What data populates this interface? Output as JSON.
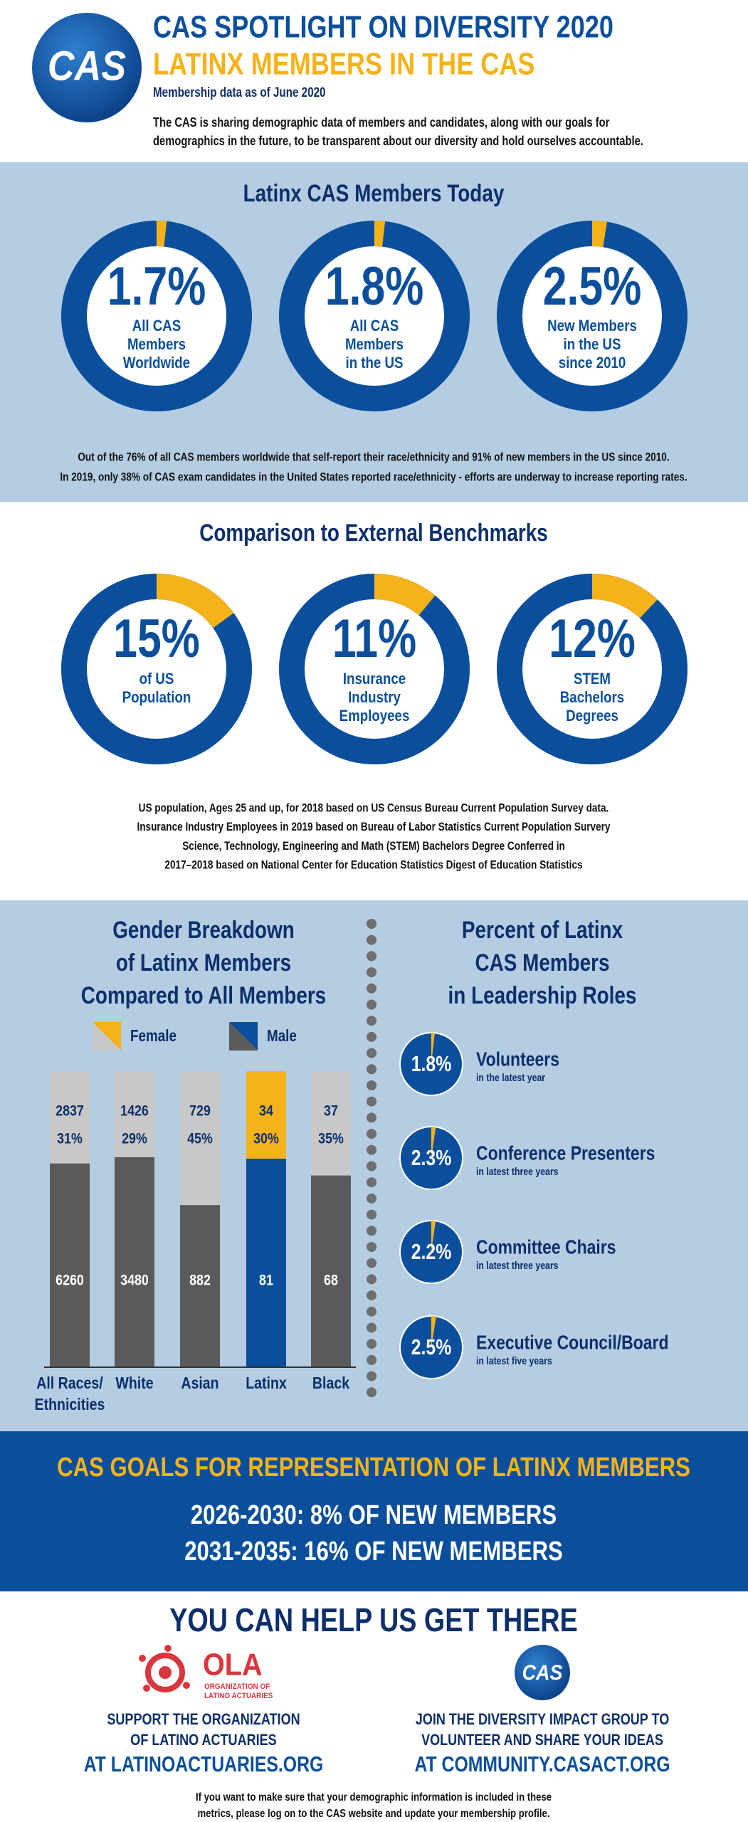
{
  "header": {
    "logo": "CAS",
    "title": "CAS SPOTLIGHT ON DIVERSITY 2020",
    "subtitle": "LATINX MEMBERS IN THE CAS",
    "date": "Membership data as of June 2020",
    "intro": [
      "The CAS is sharing demographic data of members and candidates, along with our goals for",
      "demographics in the future, to be transparent about our diversity and hold ourselves accountable."
    ]
  },
  "today": {
    "heading": "Latinx CAS Members Today",
    "donuts": [
      {
        "value": 1.7,
        "label": "1.7%",
        "text": [
          "All CAS",
          "Members",
          "Worldwide"
        ]
      },
      {
        "value": 1.8,
        "label": "1.8%",
        "text": [
          "All CAS",
          "Members",
          "in the US"
        ]
      },
      {
        "value": 2.5,
        "label": "2.5%",
        "text": [
          "New Members",
          "in the US",
          "since 2010"
        ]
      }
    ],
    "notes": [
      "Out of the 76% of all CAS members worldwide that self-report their race/ethnicity and 91% of new members in the US since 2010.",
      "In 2019, only 38% of CAS exam candidates in the United States reported race/ethnicity - efforts are underway to increase reporting rates."
    ]
  },
  "benchmarks": {
    "heading": "Comparison to External Benchmarks",
    "donuts": [
      {
        "value": 15,
        "label": "15%",
        "text": [
          "of US",
          "Population"
        ]
      },
      {
        "value": 11,
        "label": "11%",
        "text": [
          "Insurance",
          "Industry",
          "Employees"
        ]
      },
      {
        "value": 12,
        "label": "12%",
        "text": [
          "STEM",
          "Bachelors",
          "Degrees"
        ]
      }
    ],
    "notes": [
      "US population, Ages 25 and up, for 2018 based on US Census Bureau Current Population Survey data.",
      "Insurance Industry Employees in 2019 based on Bureau of Labor Statistics Current Population Survery",
      "Science, Technology, Engineering and Math (STEM)  Bachelors Degree Conferred in",
      "2017–2018 based on National Center for Education Statistics Digest of Education Statistics"
    ]
  },
  "gender": {
    "heading": [
      "Gender Breakdown",
      "of Latinx Members",
      "Compared to All Members"
    ],
    "legend": [
      "Female",
      "Male"
    ],
    "categories": [
      [
        "All Races/",
        "Ethnicities"
      ],
      [
        "White"
      ],
      [
        "Asian"
      ],
      [
        "Latinx"
      ],
      [
        "Black"
      ]
    ],
    "female": [
      2837,
      1426,
      729,
      34,
      37
    ],
    "male": [
      6260,
      3480,
      882,
      81,
      68
    ],
    "female_share": [
      {
        "value": 31,
        "label": "31%"
      },
      {
        "value": 29,
        "label": "29%"
      },
      {
        "value": 45,
        "label": "45%"
      },
      {
        "value": 30,
        "label": "30%"
      },
      {
        "value": 35,
        "label": "35%"
      }
    ],
    "highlight": 3,
    "colors": {
      "female": "#c8c8c8",
      "male": "#5a5a5a",
      "female_highlight": "#f5b21a",
      "male_highlight": "#0b4f9c"
    }
  },
  "leadership": {
    "heading": [
      "Percent of Latinx",
      "CAS Members",
      "in Leadership Roles"
    ],
    "items": [
      {
        "value": 1.8,
        "label": "1.8%",
        "title": "Volunteers",
        "sub": "in the latest year"
      },
      {
        "value": 2.3,
        "label": "2.3%",
        "title": "Conference Presenters",
        "sub": "in latest three years"
      },
      {
        "value": 2.2,
        "label": "2.2%",
        "title": "Committee Chairs",
        "sub": "in latest three years"
      },
      {
        "value": 2.5,
        "label": "2.5%",
        "title": "Executive Council/Board",
        "sub": "in latest five years"
      }
    ]
  },
  "goals": {
    "heading": "CAS GOALS FOR REPRESENTATION OF LATINX MEMBERS",
    "lines": [
      "2026-2030: 8% OF NEW MEMBERS",
      "2031-2035: 16% OF NEW MEMBERS"
    ]
  },
  "help": {
    "heading": "YOU CAN HELP US GET THERE",
    "ola": {
      "logo": "OLA",
      "logo_sub": [
        "ORGANIZATION OF",
        "LATINO ACTUARIES"
      ],
      "text": [
        "SUPPORT THE ORGANIZATION",
        "OF LATINO ACTUARIES"
      ],
      "url": "AT LATINOACTUARIES.ORG"
    },
    "cas": {
      "logo": "CAS",
      "text": [
        "JOIN THE DIVERSITY IMPACT GROUP TO",
        "VOLUNTEER AND SHARE YOUR IDEAS"
      ],
      "url": "AT COMMUNITY.CASACT.ORG"
    },
    "footer": [
      "If you want to make sure that your demographic information is included in these",
      "metrics, please log on to the CAS website and update your membership profile."
    ]
  }
}
